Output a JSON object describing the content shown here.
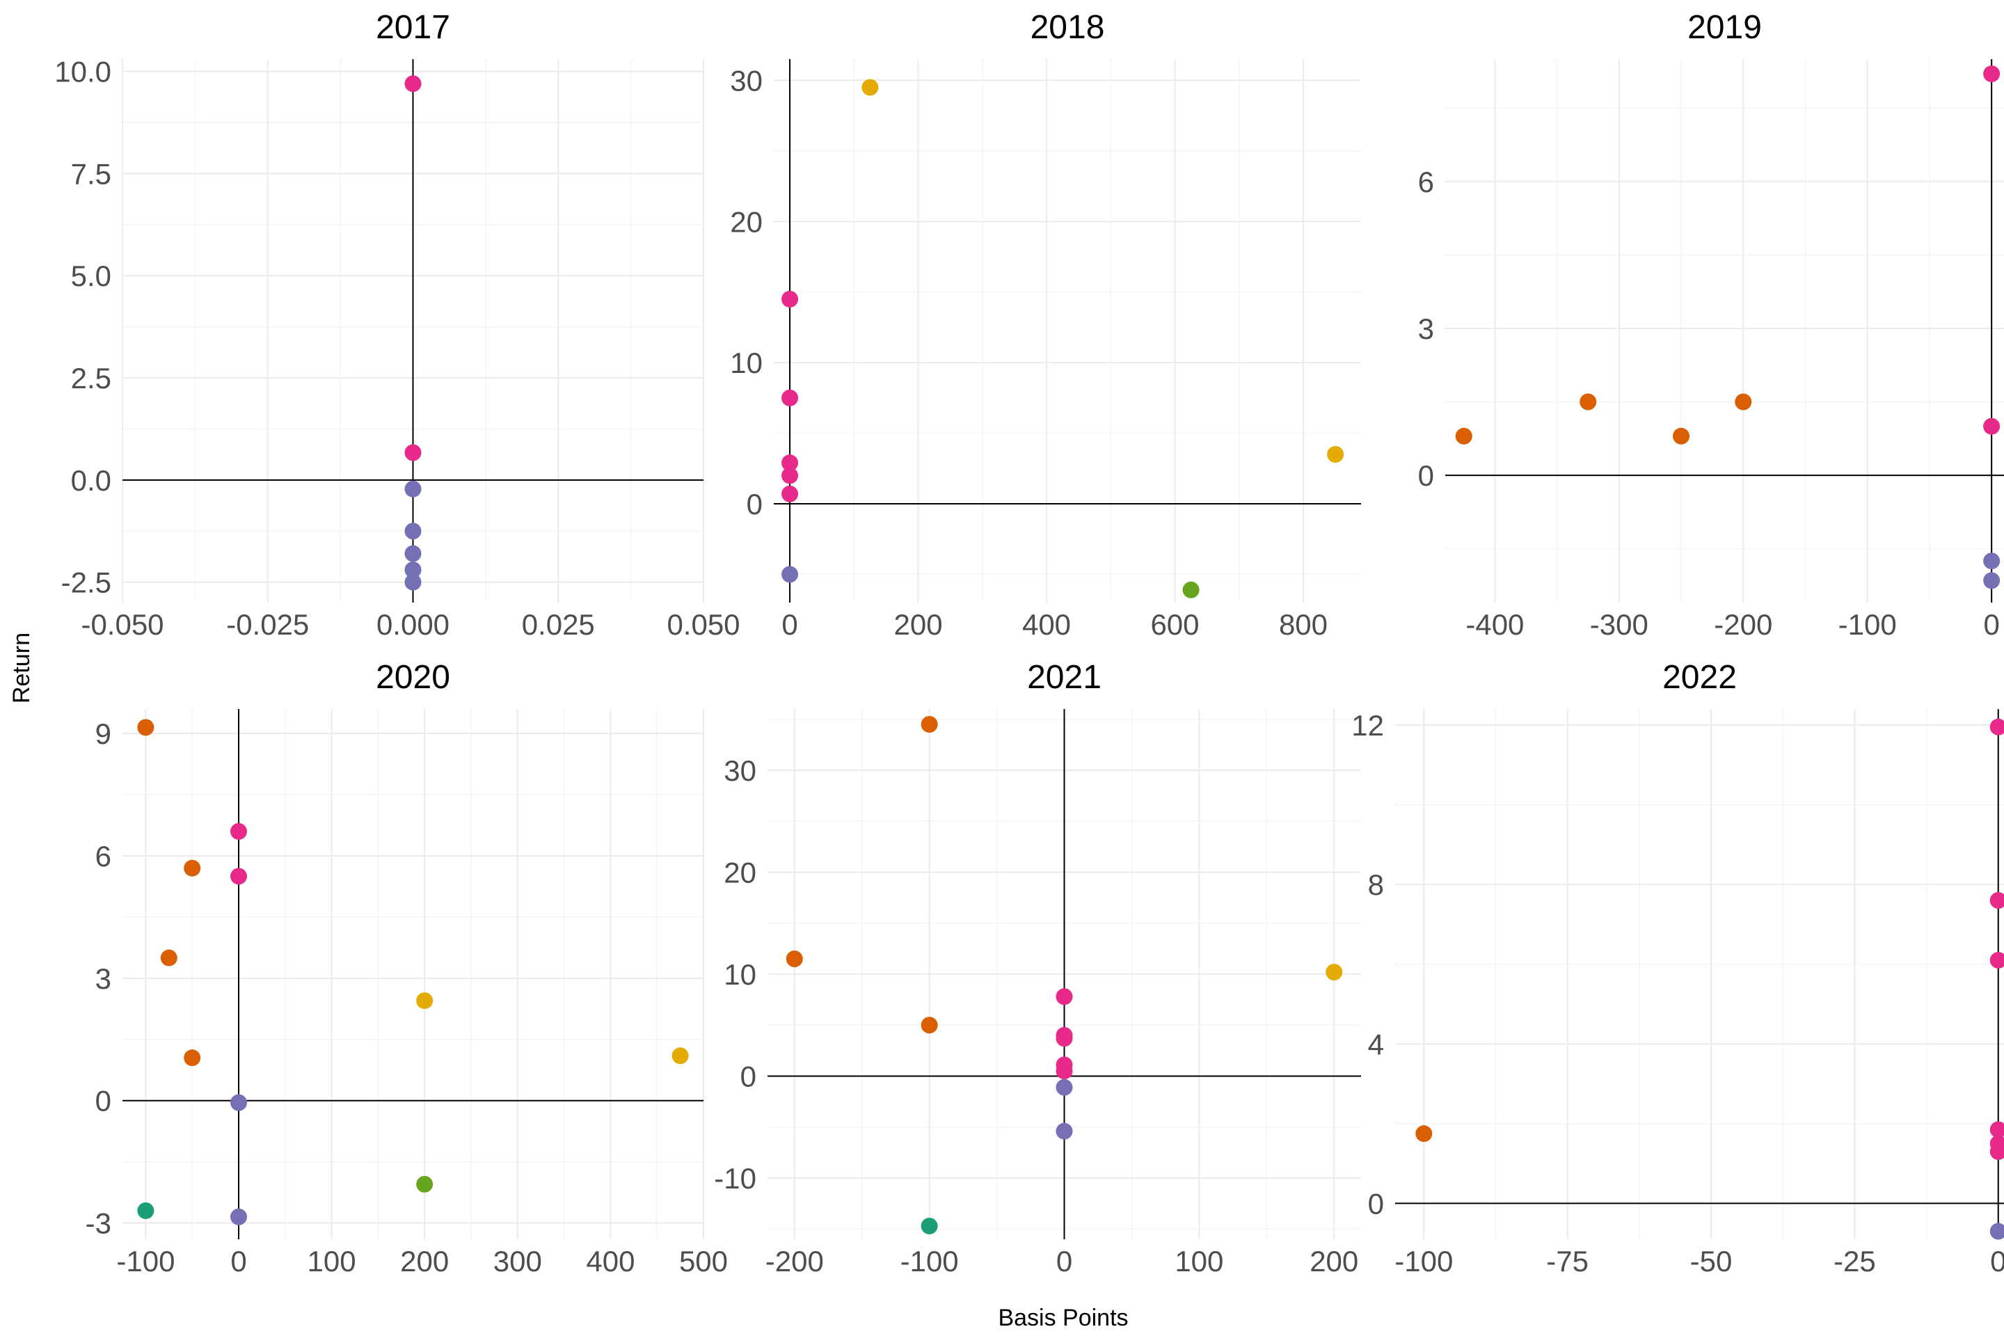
{
  "chart_data": {
    "type": "scatter",
    "xlabel": "Basis Points",
    "ylabel": "Return",
    "grid": true,
    "legend": "none",
    "palette": [
      "#E7298A",
      "#7570B3",
      "#D95F02",
      "#E6AB02",
      "#66A61E",
      "#1B9E77"
    ],
    "panels": [
      {
        "title": "2017",
        "xlim": [
          -0.05,
          0.05
        ],
        "ylim": [
          -3.0,
          10.3
        ],
        "xticks": [
          -0.05,
          -0.025,
          0.0,
          0.025,
          0.05
        ],
        "xtick_labels": [
          "-0.050",
          "-0.025",
          "0.000",
          "0.025",
          "0.050"
        ],
        "yticks": [
          -2.5,
          0.0,
          2.5,
          5.0,
          7.5,
          10.0
        ],
        "ytick_labels": [
          "-2.5",
          "0.0",
          "2.5",
          "5.0",
          "7.5",
          "10.0"
        ],
        "points": [
          {
            "x": 0,
            "y": 9.7,
            "color": "#E7298A"
          },
          {
            "x": 0,
            "y": 0.67,
            "color": "#E7298A"
          },
          {
            "x": 0,
            "y": -0.22,
            "color": "#7570B3"
          },
          {
            "x": 0,
            "y": -1.25,
            "color": "#7570B3"
          },
          {
            "x": 0,
            "y": -1.8,
            "color": "#7570B3"
          },
          {
            "x": 0,
            "y": -2.2,
            "color": "#7570B3"
          },
          {
            "x": 0,
            "y": -2.5,
            "color": "#7570B3"
          }
        ]
      },
      {
        "title": "2018",
        "xlim": [
          -25,
          890
        ],
        "ylim": [
          -7,
          31.5
        ],
        "xticks": [
          0,
          200,
          400,
          600,
          800
        ],
        "xtick_labels": [
          "0",
          "200",
          "400",
          "600",
          "800"
        ],
        "yticks": [
          0,
          10,
          20,
          30
        ],
        "ytick_labels": [
          "0",
          "10",
          "20",
          "30"
        ],
        "points": [
          {
            "x": 125,
            "y": 29.5,
            "color": "#E6AB02"
          },
          {
            "x": 0,
            "y": 14.5,
            "color": "#E7298A"
          },
          {
            "x": 0,
            "y": 7.5,
            "color": "#E7298A"
          },
          {
            "x": 0,
            "y": 2.9,
            "color": "#E7298A"
          },
          {
            "x": 0,
            "y": 2.0,
            "color": "#E7298A"
          },
          {
            "x": 0,
            "y": 0.7,
            "color": "#E7298A"
          },
          {
            "x": 850,
            "y": 3.5,
            "color": "#E6AB02"
          },
          {
            "x": 0,
            "y": -5.0,
            "color": "#7570B3"
          },
          {
            "x": 625,
            "y": -6.1,
            "color": "#66A61E"
          }
        ]
      },
      {
        "title": "2019",
        "xlim": [
          -440,
          10
        ],
        "ylim": [
          -2.6,
          8.5
        ],
        "xticks": [
          -400,
          -300,
          -200,
          -100,
          0
        ],
        "xtick_labels": [
          "-400",
          "-300",
          "-200",
          "-100",
          "0"
        ],
        "yticks": [
          0,
          3,
          6
        ],
        "ytick_labels": [
          "0",
          "3",
          "6"
        ],
        "points": [
          {
            "x": 0,
            "y": 8.2,
            "color": "#E7298A"
          },
          {
            "x": 0,
            "y": 1.0,
            "color": "#E7298A"
          },
          {
            "x": -425,
            "y": 0.8,
            "color": "#D95F02"
          },
          {
            "x": -325,
            "y": 1.5,
            "color": "#D95F02"
          },
          {
            "x": -250,
            "y": 0.8,
            "color": "#D95F02"
          },
          {
            "x": -200,
            "y": 1.5,
            "color": "#D95F02"
          },
          {
            "x": 0,
            "y": -1.75,
            "color": "#7570B3"
          },
          {
            "x": 0,
            "y": -2.15,
            "color": "#7570B3"
          }
        ]
      },
      {
        "title": "2020",
        "xlim": [
          -125,
          500
        ],
        "ylim": [
          -3.4,
          9.6
        ],
        "xticks": [
          -100,
          0,
          100,
          200,
          300,
          400,
          500
        ],
        "xtick_labels": [
          "-100",
          "0",
          "100",
          "200",
          "300",
          "400",
          "500"
        ],
        "yticks": [
          -3,
          0,
          3,
          6,
          9
        ],
        "ytick_labels": [
          "-3",
          "0",
          "3",
          "6",
          "9"
        ],
        "points": [
          {
            "x": -100,
            "y": 9.15,
            "color": "#D95F02"
          },
          {
            "x": 0,
            "y": 6.6,
            "color": "#E7298A"
          },
          {
            "x": -50,
            "y": 5.7,
            "color": "#D95F02"
          },
          {
            "x": 0,
            "y": 5.5,
            "color": "#E7298A"
          },
          {
            "x": -75,
            "y": 3.5,
            "color": "#D95F02"
          },
          {
            "x": 200,
            "y": 2.45,
            "color": "#E6AB02"
          },
          {
            "x": 475,
            "y": 1.1,
            "color": "#E6AB02"
          },
          {
            "x": -50,
            "y": 1.05,
            "color": "#D95F02"
          },
          {
            "x": 0,
            "y": -0.05,
            "color": "#7570B3"
          },
          {
            "x": 200,
            "y": -2.05,
            "color": "#66A61E"
          },
          {
            "x": -100,
            "y": -2.7,
            "color": "#1B9E77"
          },
          {
            "x": 0,
            "y": -2.85,
            "color": "#7570B3"
          }
        ]
      },
      {
        "title": "2021",
        "xlim": [
          -220,
          220
        ],
        "ylim": [
          -16,
          36
        ],
        "xticks": [
          -200,
          -100,
          0,
          100,
          200
        ],
        "xtick_labels": [
          "-200",
          "-100",
          "0",
          "100",
          "200"
        ],
        "yticks": [
          -10,
          0,
          10,
          20,
          30
        ],
        "ytick_labels": [
          "-10",
          "0",
          "10",
          "20",
          "30"
        ],
        "points": [
          {
            "x": -100,
            "y": 34.5,
            "color": "#D95F02"
          },
          {
            "x": -200,
            "y": 11.5,
            "color": "#D95F02"
          },
          {
            "x": 200,
            "y": 10.2,
            "color": "#E6AB02"
          },
          {
            "x": 0,
            "y": 7.8,
            "color": "#E7298A"
          },
          {
            "x": -100,
            "y": 5.0,
            "color": "#D95F02"
          },
          {
            "x": 0,
            "y": 4.0,
            "color": "#E7298A"
          },
          {
            "x": 0,
            "y": 3.7,
            "color": "#E7298A"
          },
          {
            "x": 0,
            "y": 1.1,
            "color": "#E7298A"
          },
          {
            "x": 0,
            "y": 0.5,
            "color": "#E7298A"
          },
          {
            "x": 0,
            "y": -1.1,
            "color": "#7570B3"
          },
          {
            "x": 0,
            "y": -5.4,
            "color": "#7570B3"
          },
          {
            "x": -100,
            "y": -14.7,
            "color": "#1B9E77"
          }
        ]
      },
      {
        "title": "2022",
        "xlim": [
          -105,
          1
        ],
        "ylim": [
          -0.9,
          12.4
        ],
        "xticks": [
          -100,
          -75,
          -50,
          -25,
          0
        ],
        "xtick_labels": [
          "-100",
          "-75",
          "-50",
          "-25",
          "0"
        ],
        "yticks": [
          0,
          4,
          8,
          12
        ],
        "ytick_labels": [
          "0",
          "4",
          "8",
          "12"
        ],
        "points": [
          {
            "x": 0,
            "y": 11.95,
            "color": "#E7298A"
          },
          {
            "x": 0,
            "y": 7.6,
            "color": "#E7298A"
          },
          {
            "x": 0,
            "y": 6.1,
            "color": "#E7298A"
          },
          {
            "x": 0,
            "y": 1.85,
            "color": "#E7298A"
          },
          {
            "x": -100,
            "y": 1.75,
            "color": "#D95F02"
          },
          {
            "x": 0,
            "y": 1.5,
            "color": "#E7298A"
          },
          {
            "x": 0,
            "y": 1.3,
            "color": "#E7298A"
          },
          {
            "x": 0,
            "y": -0.7,
            "color": "#7570B3"
          }
        ]
      }
    ]
  }
}
